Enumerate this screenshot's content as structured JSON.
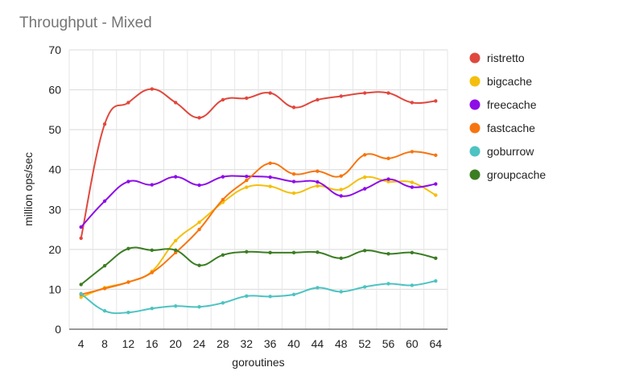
{
  "chart_data": {
    "type": "line",
    "title": "Throughput - Mixed",
    "xlabel": "goroutines",
    "ylabel": "million ops/sec",
    "ylim": [
      0,
      70
    ],
    "yticks": [
      0,
      10,
      20,
      30,
      40,
      50,
      60,
      70
    ],
    "grid": true,
    "legend_position": "right",
    "x": [
      4,
      8,
      12,
      16,
      20,
      24,
      28,
      32,
      36,
      40,
      44,
      48,
      52,
      56,
      60,
      64
    ],
    "series": [
      {
        "name": "ristretto",
        "color": "#e0483d",
        "values": [
          22.8,
          51.4,
          56.8,
          60.2,
          56.8,
          53.0,
          57.5,
          57.9,
          59.2,
          55.6,
          57.5,
          58.4,
          59.2,
          59.2,
          56.8,
          57.2
        ]
      },
      {
        "name": "bigcache",
        "color": "#f4bf0c",
        "values": [
          8.0,
          10.4,
          11.8,
          14.5,
          22.2,
          26.8,
          31.8,
          35.6,
          35.8,
          34.1,
          35.9,
          35.0,
          38.1,
          37.0,
          36.8,
          33.6
        ]
      },
      {
        "name": "freecache",
        "color": "#8e0ce8",
        "values": [
          25.6,
          32.1,
          37.0,
          36.2,
          38.2,
          36.1,
          38.2,
          38.3,
          38.1,
          37.0,
          36.9,
          33.4,
          35.2,
          37.6,
          35.6,
          36.4
        ]
      },
      {
        "name": "fastcache",
        "color": "#f7750f",
        "values": [
          8.7,
          10.2,
          11.8,
          14.2,
          19.2,
          25.0,
          32.5,
          37.3,
          41.6,
          38.9,
          39.6,
          38.4,
          43.7,
          42.8,
          44.5,
          43.6
        ]
      },
      {
        "name": "goburrow",
        "color": "#4dc3c2",
        "values": [
          8.9,
          4.6,
          4.2,
          5.2,
          5.8,
          5.6,
          6.6,
          8.3,
          8.2,
          8.7,
          10.4,
          9.4,
          10.6,
          11.4,
          11.0,
          12.1
        ]
      },
      {
        "name": "groupcache",
        "color": "#3b7d23",
        "values": [
          11.2,
          15.9,
          20.2,
          19.8,
          19.8,
          16.0,
          18.6,
          19.4,
          19.2,
          19.2,
          19.3,
          17.8,
          19.7,
          18.9,
          19.2,
          17.8
        ]
      }
    ]
  }
}
